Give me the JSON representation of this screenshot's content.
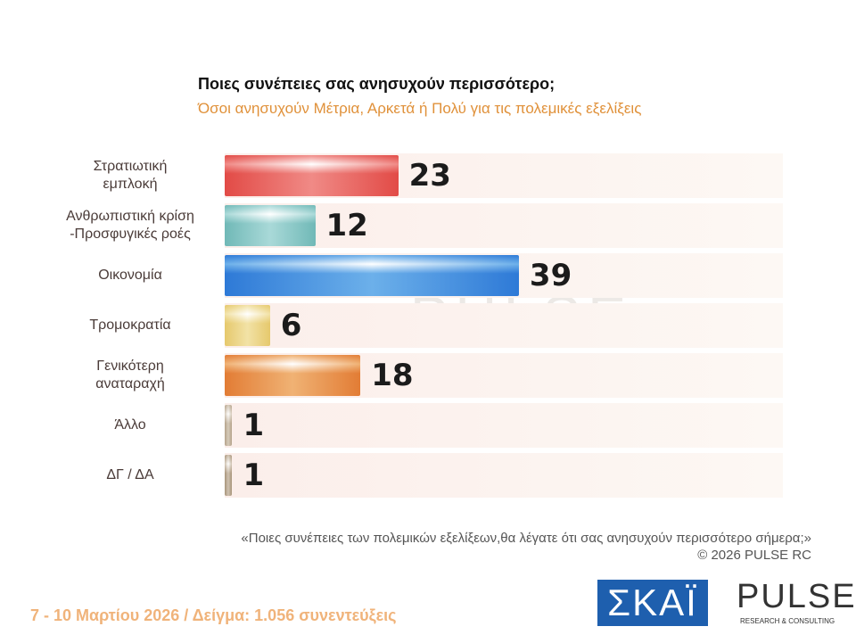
{
  "chart_data": {
    "type": "bar",
    "orientation": "horizontal",
    "title": "Ποιες συνέπειες σας ανησυχούν περισσότερο;",
    "subtitle": "Όσοι ανησυχούν Μέτρια, Αρκετά ή Πολύ για τις πολεμικές εξελίξεις",
    "categories": [
      "Στρατιωτική\nεμπλοκή",
      "Ανθρωπιστική κρίση\n-Προσφυγικές ροές",
      "Οικονομία",
      "Τρομοκρατία",
      "Γενικότερη\nαναταραχή",
      "Άλλο",
      "ΔΓ / ΔΑ"
    ],
    "values": [
      23,
      12,
      39,
      6,
      18,
      1,
      1
    ],
    "colors": [
      "#f08a86",
      "#a9d9d8",
      "#6cb0ea",
      "#f2e2a6",
      "#f0b274",
      "#d6cbbb",
      "#cfc2b0"
    ],
    "xlim": [
      0,
      74
    ],
    "question": "«Ποιες συνέπειες των πολεμικών εξελίξεων,θα λέγατε ότι σας ανησυχούν περισσότερο σήμερα;»",
    "copyright": "©  2026  PULSE RC",
    "footer": "7 - 10  Μαρτίου 2026  /  Δείγμα:  1.056 συνεντεύξεις",
    "logo_skai": "ΣΚΑΪ",
    "logo_pulse": "PULSE",
    "logo_pulse_sub": "RESEARCH & CONSULTING"
  }
}
